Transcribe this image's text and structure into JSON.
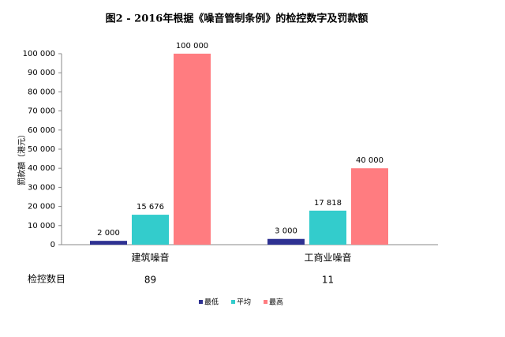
{
  "chart_data": {
    "type": "bar",
    "title": "图2 - 2016年根据《噪音管制条例》的检控数字及罚款额",
    "y_label": "罰款額（港元）",
    "categories": [
      "建筑噪音",
      "工商业噪音"
    ],
    "series": [
      {
        "name": "最低",
        "color": "#2e3192",
        "values": [
          2000,
          3000
        ],
        "value_labels": [
          "2 000",
          "3 000"
        ]
      },
      {
        "name": "平均",
        "color": "#33cccc",
        "values": [
          15676,
          17818
        ],
        "value_labels": [
          "15 676",
          "17 818"
        ]
      },
      {
        "name": "最高",
        "color": "#ff7c80",
        "values": [
          100000,
          40000
        ],
        "value_labels": [
          "100 000",
          "40 000"
        ]
      }
    ],
    "ylim": [
      0,
      100000
    ],
    "yticks": [
      0,
      {
        "value": 10000,
        "label": "10 000"
      },
      {
        "value": 20000,
        "label": "20 000"
      },
      {
        "value": 30000,
        "label": "30 000"
      },
      {
        "value": 40000,
        "label": "40 000"
      },
      {
        "value": 50000,
        "label": "50 000"
      },
      {
        "value": 60000,
        "label": "60 000"
      },
      {
        "value": 70000,
        "label": "70 000"
      },
      {
        "value": 80000,
        "label": "80 000"
      },
      {
        "value": 90000,
        "label": "90 000"
      },
      {
        "value": 100000,
        "label": "100 000"
      }
    ],
    "table": {
      "label": "检控数目",
      "values": [
        89,
        11
      ]
    },
    "legend": "bottom"
  }
}
